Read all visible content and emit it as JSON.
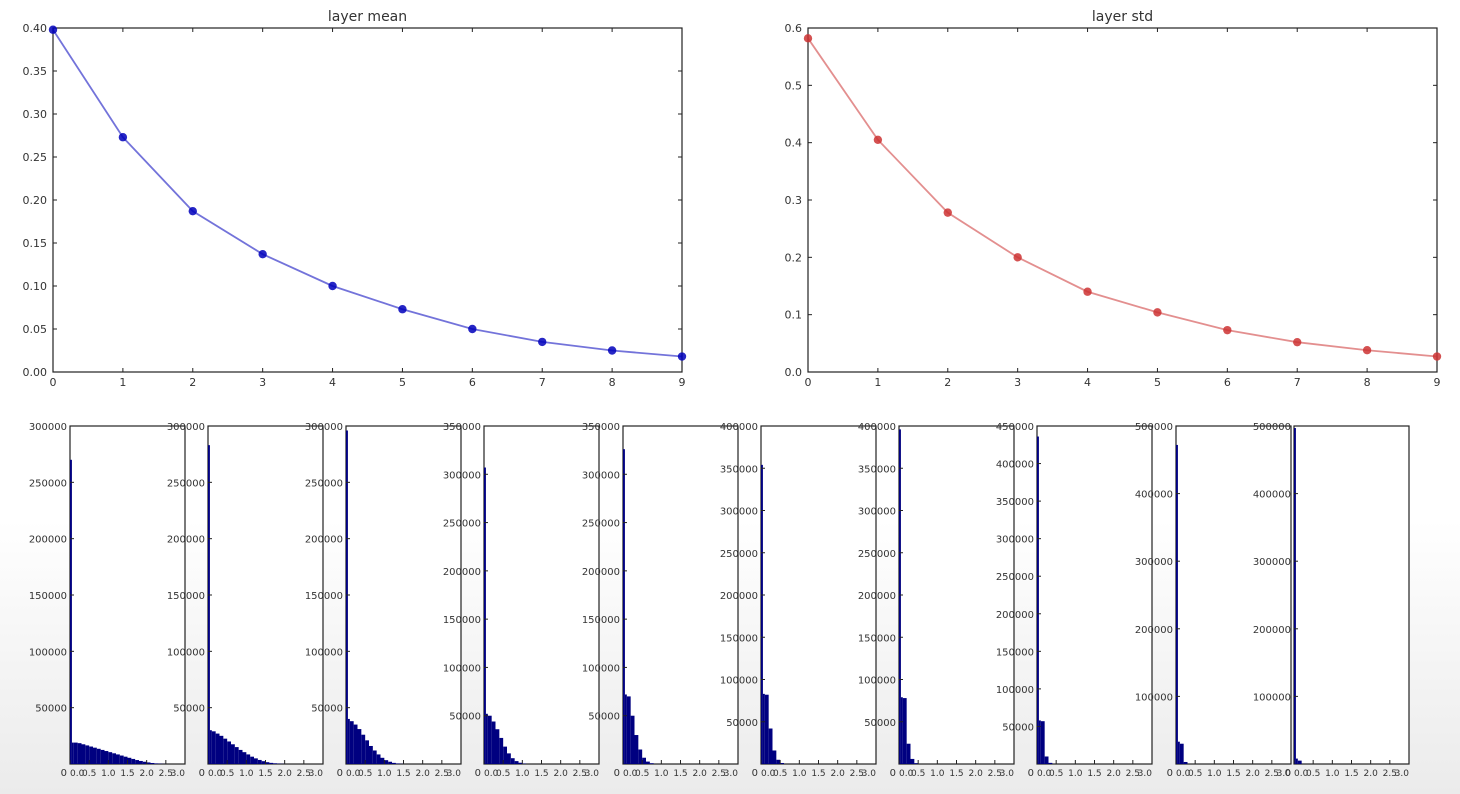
{
  "chart_data": [
    {
      "type": "line",
      "title": "layer mean",
      "xlabel": "",
      "ylabel": "",
      "x": [
        0,
        1,
        2,
        3,
        4,
        5,
        6,
        7,
        8,
        9
      ],
      "xlim": [
        0,
        9
      ],
      "ylim": [
        0,
        0.4
      ],
      "xticks": [
        "0",
        "1",
        "2",
        "3",
        "4",
        "5",
        "6",
        "7",
        "8",
        "9"
      ],
      "yticks": [
        "0.00",
        "0.05",
        "0.10",
        "0.15",
        "0.20",
        "0.25",
        "0.30",
        "0.35",
        "0.40"
      ],
      "series": [
        {
          "color": "#0000bb",
          "values": [
            0.398,
            0.273,
            0.187,
            0.137,
            0.1,
            0.073,
            0.05,
            0.035,
            0.025,
            0.018
          ]
        }
      ],
      "grid": false
    },
    {
      "type": "line",
      "title": "layer std",
      "xlabel": "",
      "ylabel": "",
      "x": [
        0,
        1,
        2,
        3,
        4,
        5,
        6,
        7,
        8,
        9
      ],
      "xlim": [
        0,
        9
      ],
      "ylim": [
        0,
        0.6
      ],
      "xticks": [
        "0",
        "1",
        "2",
        "3",
        "4",
        "5",
        "6",
        "7",
        "8",
        "9"
      ],
      "yticks": [
        "0.0",
        "0.1",
        "0.2",
        "0.3",
        "0.4",
        "0.5",
        "0.6"
      ],
      "series": [
        {
          "color": "#cc3333",
          "values": [
            0.582,
            0.405,
            0.278,
            0.2,
            0.14,
            0.104,
            0.073,
            0.052,
            0.038,
            0.027
          ]
        }
      ],
      "grid": false
    },
    {
      "type": "bar",
      "subtype": "histogram",
      "layer": 0,
      "color": "#000080",
      "ylim": [
        0,
        300000
      ],
      "yticks": [
        "50000",
        "100000",
        "150000",
        "200000",
        "250000",
        "300000"
      ],
      "ytick_values": [
        50000,
        100000,
        150000,
        200000,
        250000,
        300000
      ],
      "xticks": [
        "0",
        "0.0",
        "0.5",
        "1.0",
        "1.5",
        "2.0",
        "2.5",
        "3.0"
      ],
      "xlim": [
        0,
        3.0
      ],
      "bin_edges": [
        0,
        0.05,
        0.1,
        0.2,
        0.3,
        0.4,
        0.5,
        0.6,
        0.7,
        0.8,
        0.9,
        1.0,
        1.1,
        1.2,
        1.3,
        1.4,
        1.5,
        1.6,
        1.7,
        1.8,
        1.9,
        2.0,
        2.1,
        2.2,
        2.3,
        2.4,
        2.5
      ],
      "values": [
        270000,
        19000,
        19000,
        18500,
        17500,
        16500,
        15500,
        14500,
        13500,
        12500,
        11500,
        10500,
        9500,
        8500,
        7500,
        6500,
        5500,
        4500,
        3500,
        2700,
        2000,
        1400,
        900,
        500,
        250,
        100
      ]
    },
    {
      "type": "bar",
      "subtype": "histogram",
      "layer": 1,
      "color": "#000080",
      "ylim": [
        0,
        300000
      ],
      "yticks": [
        "50000",
        "100000",
        "150000",
        "200000",
        "250000",
        "300000"
      ],
      "ytick_values": [
        50000,
        100000,
        150000,
        200000,
        250000,
        300000
      ],
      "xticks": [
        "0",
        "0.0",
        "0.5",
        "1.0",
        "1.5",
        "2.0",
        "2.5",
        "3.0"
      ],
      "xlim": [
        0,
        3.0
      ],
      "bin_edges": [
        0,
        0.05,
        0.1,
        0.2,
        0.3,
        0.4,
        0.5,
        0.6,
        0.7,
        0.8,
        0.9,
        1.0,
        1.1,
        1.2,
        1.3,
        1.4,
        1.5,
        1.6,
        1.7,
        1.8,
        1.9,
        2.0
      ],
      "values": [
        283000,
        30000,
        29000,
        27000,
        25000,
        22500,
        20000,
        17500,
        15000,
        12500,
        10500,
        8500,
        6500,
        5000,
        3600,
        2500,
        1600,
        1000,
        600,
        300,
        150
      ]
    },
    {
      "type": "bar",
      "subtype": "histogram",
      "layer": 2,
      "color": "#000080",
      "ylim": [
        0,
        300000
      ],
      "yticks": [
        "50000",
        "100000",
        "150000",
        "200000",
        "250000",
        "300000"
      ],
      "ytick_values": [
        50000,
        100000,
        150000,
        200000,
        250000,
        300000
      ],
      "xticks": [
        "0",
        "0.0",
        "0.5",
        "1.0",
        "1.5",
        "2.0",
        "2.5",
        "3.0"
      ],
      "xlim": [
        0,
        3.0
      ],
      "bin_edges": [
        0,
        0.05,
        0.1,
        0.2,
        0.3,
        0.4,
        0.5,
        0.6,
        0.7,
        0.8,
        0.9,
        1.0,
        1.1,
        1.2,
        1.3,
        1.4,
        1.5
      ],
      "values": [
        296000,
        40000,
        38000,
        35000,
        31000,
        26000,
        21000,
        16000,
        12000,
        8500,
        5500,
        3400,
        2000,
        1000,
        450,
        150
      ]
    },
    {
      "type": "bar",
      "subtype": "histogram",
      "layer": 3,
      "color": "#000080",
      "ylim": [
        0,
        350000
      ],
      "yticks": [
        "50000",
        "100000",
        "150000",
        "200000",
        "250000",
        "300000",
        "350000"
      ],
      "ytick_values": [
        50000,
        100000,
        150000,
        200000,
        250000,
        300000,
        350000
      ],
      "xticks": [
        "0",
        "0.0",
        "0.5",
        "1.0",
        "1.5",
        "2.0",
        "2.5",
        "3.0"
      ],
      "xlim": [
        0,
        3.0
      ],
      "bin_edges": [
        0,
        0.05,
        0.1,
        0.2,
        0.3,
        0.4,
        0.5,
        0.6,
        0.7,
        0.8,
        0.9,
        1.0,
        1.1
      ],
      "values": [
        307000,
        52000,
        50000,
        44000,
        36000,
        27000,
        18000,
        11000,
        6000,
        3000,
        1300,
        400
      ]
    },
    {
      "type": "bar",
      "subtype": "histogram",
      "layer": 4,
      "color": "#000080",
      "ylim": [
        0,
        350000
      ],
      "yticks": [
        "50000",
        "100000",
        "150000",
        "200000",
        "250000",
        "300000",
        "350000"
      ],
      "ytick_values": [
        50000,
        100000,
        150000,
        200000,
        250000,
        300000,
        350000
      ],
      "xticks": [
        "0",
        "0.0",
        "0.5",
        "1.0",
        "1.5",
        "2.0",
        "2.5",
        "3.0"
      ],
      "xlim": [
        0,
        3.0
      ],
      "bin_edges": [
        0,
        0.05,
        0.1,
        0.2,
        0.3,
        0.4,
        0.5,
        0.6,
        0.7,
        0.8
      ],
      "values": [
        326000,
        72000,
        70000,
        50000,
        30000,
        15000,
        6500,
        2500,
        800
      ]
    },
    {
      "type": "bar",
      "subtype": "histogram",
      "layer": 5,
      "color": "#000080",
      "ylim": [
        0,
        400000
      ],
      "yticks": [
        "50000",
        "100000",
        "150000",
        "200000",
        "250000",
        "300000",
        "350000",
        "400000"
      ],
      "ytick_values": [
        50000,
        100000,
        150000,
        200000,
        250000,
        300000,
        350000,
        400000
      ],
      "xticks": [
        "0",
        "0.0",
        "0.5",
        "1.0",
        "1.5",
        "2.0",
        "2.5",
        "3.0"
      ],
      "xlim": [
        0,
        3.0
      ],
      "bin_edges": [
        0,
        0.05,
        0.1,
        0.2,
        0.3,
        0.4,
        0.5,
        0.6
      ],
      "values": [
        354000,
        83000,
        82000,
        42000,
        16000,
        5000,
        1200
      ]
    },
    {
      "type": "bar",
      "subtype": "histogram",
      "layer": 6,
      "color": "#000080",
      "ylim": [
        0,
        400000
      ],
      "yticks": [
        "50000",
        "100000",
        "150000",
        "200000",
        "250000",
        "300000",
        "350000",
        "400000"
      ],
      "ytick_values": [
        50000,
        100000,
        150000,
        200000,
        250000,
        300000,
        350000,
        400000
      ],
      "xticks": [
        "0",
        "0.0",
        "0.5",
        "1.0",
        "1.5",
        "2.0",
        "2.5",
        "3.0"
      ],
      "xlim": [
        0,
        3.0
      ],
      "bin_edges": [
        0,
        0.05,
        0.1,
        0.2,
        0.3,
        0.4,
        0.5
      ],
      "values": [
        396000,
        79000,
        78000,
        24000,
        6000,
        1000
      ]
    },
    {
      "type": "bar",
      "subtype": "histogram",
      "layer": 7,
      "color": "#000080",
      "ylim": [
        0,
        450000
      ],
      "yticks": [
        "50000",
        "100000",
        "150000",
        "200000",
        "250000",
        "300000",
        "350000",
        "400000",
        "450000"
      ],
      "ytick_values": [
        50000,
        100000,
        150000,
        200000,
        250000,
        300000,
        350000,
        400000,
        450000
      ],
      "xticks": [
        "0",
        "0.0",
        "0.5",
        "1.0",
        "1.5",
        "2.0",
        "2.5",
        "3.0"
      ],
      "xlim": [
        0,
        3.0
      ],
      "bin_edges": [
        0,
        0.05,
        0.1,
        0.2,
        0.3,
        0.4
      ],
      "values": [
        436000,
        58000,
        57000,
        10000,
        1500
      ]
    },
    {
      "type": "bar",
      "subtype": "histogram",
      "layer": 8,
      "color": "#000080",
      "ylim": [
        0,
        500000
      ],
      "yticks": [
        "100000",
        "200000",
        "300000",
        "400000",
        "500000"
      ],
      "ytick_values": [
        100000,
        200000,
        300000,
        400000,
        500000
      ],
      "xticks": [
        "0",
        "0.0",
        "0.5",
        "1.0",
        "1.5",
        "2.0",
        "2.5",
        "3.0"
      ],
      "xlim": [
        0,
        3.0
      ],
      "bin_edges": [
        0,
        0.05,
        0.1,
        0.2,
        0.3
      ],
      "values": [
        472000,
        33000,
        30000,
        3000
      ]
    },
    {
      "type": "bar",
      "subtype": "histogram",
      "layer": 9,
      "color": "#000080",
      "ylim": [
        0,
        500000
      ],
      "yticks": [
        "100000",
        "200000",
        "300000",
        "400000",
        "500000"
      ],
      "ytick_values": [
        100000,
        200000,
        300000,
        400000,
        500000
      ],
      "xticks": [
        "0",
        "0.0",
        "0.5",
        "1.0",
        "1.5",
        "2.0",
        "2.5",
        "3.0"
      ],
      "xlim": [
        0,
        3.0
      ],
      "bin_edges": [
        0,
        0.05,
        0.1,
        0.2
      ],
      "values": [
        497000,
        8000,
        5000
      ]
    }
  ]
}
